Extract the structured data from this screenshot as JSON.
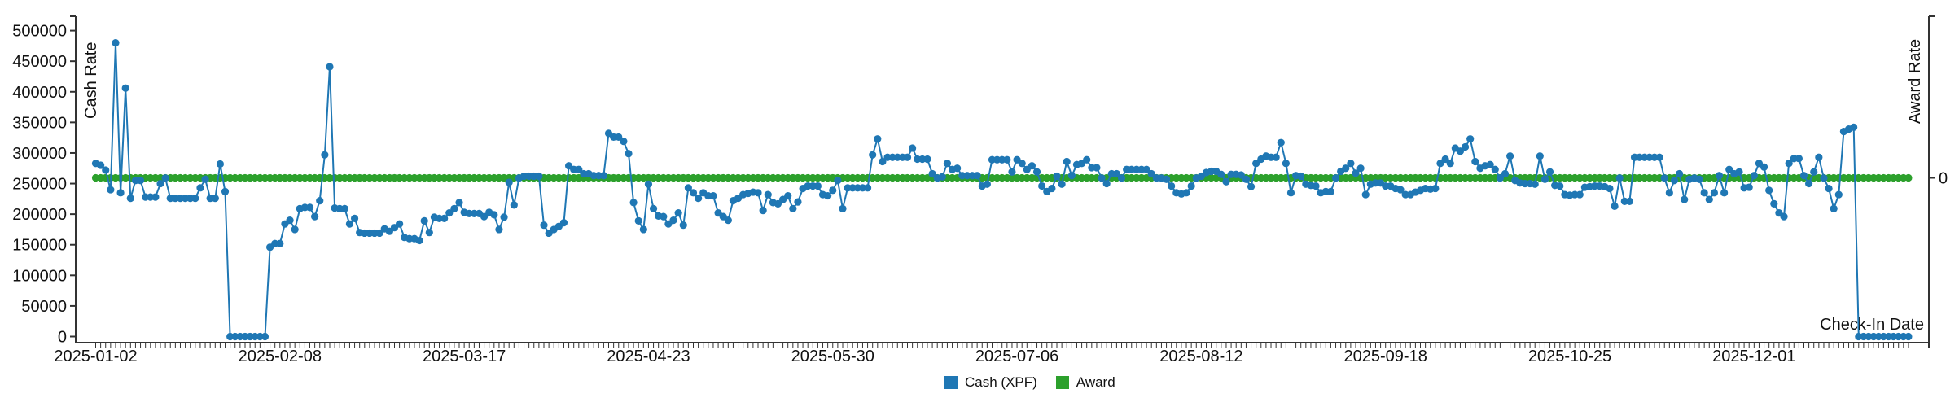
{
  "axes": {
    "left_title": "Cash Rate",
    "right_title": "Award Rate",
    "x_title": "Check-In Date",
    "right_tick_label": "0"
  },
  "legend": [
    {
      "label": "Cash (XPF)",
      "color": "#1f77b4"
    },
    {
      "label": "Award",
      "color": "#2ca02c"
    }
  ],
  "chart_data": {
    "type": "line",
    "title": "",
    "x_axis": {
      "label": "Check-In Date",
      "start_date": "2025-01-02",
      "interval": "daily",
      "num_points": 365,
      "major_tick_interval_days": 37,
      "major_tick_labels": [
        "2025-01-02",
        "2025-02-08",
        "2025-03-17",
        "2025-04-23",
        "2025-05-30",
        "2025-07-06",
        "2025-08-12",
        "2025-09-18",
        "2025-10-25",
        "2025-12-01"
      ],
      "minor_ticks": "one per day"
    },
    "y_left": {
      "label": "Cash Rate",
      "min": 0,
      "max": 500000,
      "tick_step": 50000,
      "tick_labels": [
        "0",
        "50000",
        "100000",
        "150000",
        "200000",
        "250000",
        "300000",
        "350000",
        "400000",
        "450000",
        "500000"
      ],
      "grid": false
    },
    "y_right": {
      "label": "Award Rate",
      "tick_labels": [
        "0"
      ]
    },
    "legend_position": "bottom-center",
    "series": [
      {
        "name": "Cash (XPF)",
        "color": "#1f77b4",
        "axis": "left",
        "marker": "circle",
        "values": [
          283000,
          280000,
          272000,
          240000,
          480000,
          235000,
          406000,
          226000,
          255000,
          255000,
          228000,
          228000,
          228000,
          250000,
          259000,
          226000,
          226000,
          226000,
          226000,
          226000,
          226000,
          243000,
          257000,
          226000,
          226000,
          282000,
          237000,
          0,
          0,
          0,
          0,
          0,
          0,
          0,
          0,
          146000,
          152000,
          152000,
          184000,
          190000,
          175000,
          209000,
          211000,
          211000,
          196000,
          222000,
          297000,
          441000,
          210000,
          209000,
          209000,
          184000,
          193000,
          170000,
          169000,
          169000,
          169000,
          169000,
          176000,
          172000,
          178000,
          184000,
          162000,
          160000,
          160000,
          157000,
          189000,
          170000,
          195000,
          193000,
          193000,
          202000,
          209000,
          219000,
          203000,
          201000,
          201000,
          201000,
          196000,
          203000,
          199000,
          175000,
          195000,
          252000,
          215000,
          259000,
          262000,
          262000,
          262000,
          262000,
          182000,
          169000,
          175000,
          180000,
          186000,
          279000,
          273000,
          273000,
          266000,
          266000,
          263000,
          263000,
          263000,
          332000,
          326000,
          326000,
          319000,
          299000,
          219000,
          189000,
          175000,
          249000,
          209000,
          197000,
          196000,
          184000,
          190000,
          202000,
          182000,
          243000,
          235000,
          226000,
          235000,
          230000,
          230000,
          202000,
          196000,
          190000,
          222000,
          226000,
          232000,
          234000,
          236000,
          235000,
          206000,
          232000,
          219000,
          217000,
          224000,
          230000,
          209000,
          220000,
          242000,
          246000,
          246000,
          246000,
          232000,
          230000,
          239000,
          255000,
          209000,
          243000,
          243000,
          243000,
          243000,
          243000,
          297000,
          323000,
          286000,
          293000,
          293000,
          293000,
          293000,
          293000,
          308000,
          290000,
          290000,
          290000,
          266000,
          259000,
          261000,
          283000,
          273000,
          275000,
          263000,
          263000,
          263000,
          263000,
          246000,
          249000,
          289000,
          289000,
          289000,
          289000,
          269000,
          289000,
          283000,
          273000,
          279000,
          269000,
          246000,
          237000,
          242000,
          262000,
          249000,
          286000,
          263000,
          281000,
          283000,
          289000,
          276000,
          276000,
          259000,
          250000,
          266000,
          266000,
          259000,
          273000,
          273000,
          273000,
          273000,
          273000,
          266000,
          259000,
          259000,
          257000,
          246000,
          235000,
          233000,
          235000,
          246000,
          259000,
          262000,
          268000,
          270000,
          270000,
          265000,
          253000,
          265000,
          265000,
          264000,
          257000,
          245000,
          283000,
          290000,
          295000,
          293000,
          293000,
          317000,
          283000,
          235000,
          263000,
          262000,
          249000,
          247000,
          246000,
          235000,
          237000,
          237000,
          259000,
          270000,
          275000,
          283000,
          267000,
          275000,
          232000,
          249000,
          251000,
          251000,
          246000,
          246000,
          242000,
          240000,
          232000,
          232000,
          236000,
          239000,
          242000,
          241000,
          242000,
          283000,
          290000,
          283000,
          308000,
          303000,
          310000,
          323000,
          286000,
          275000,
          279000,
          281000,
          273000,
          259000,
          266000,
          295000,
          255000,
          251000,
          250000,
          250000,
          249000,
          295000,
          257000,
          269000,
          247000,
          246000,
          232000,
          231000,
          232000,
          232000,
          244000,
          245000,
          246000,
          246000,
          245000,
          242000,
          213000,
          259000,
          221000,
          221000,
          293000,
          293000,
          293000,
          293000,
          293000,
          293000,
          259000,
          235000,
          255000,
          266000,
          224000,
          257000,
          259000,
          257000,
          235000,
          224000,
          235000,
          263000,
          235000,
          273000,
          266000,
          269000,
          243000,
          244000,
          263000,
          283000,
          277000,
          239000,
          217000,
          202000,
          196000,
          283000,
          291000,
          291000,
          263000,
          250000,
          269000,
          293000,
          259000,
          242000,
          209000,
          232000,
          335000,
          339000,
          342000,
          0,
          0,
          0,
          0,
          0,
          0,
          0,
          0,
          0,
          0,
          0
        ]
      },
      {
        "name": "Award",
        "color": "#2ca02c",
        "axis": "right",
        "marker": "circle",
        "constant_value": 0,
        "num_points": 365,
        "left_axis_equivalent_position": 259000
      }
    ]
  }
}
